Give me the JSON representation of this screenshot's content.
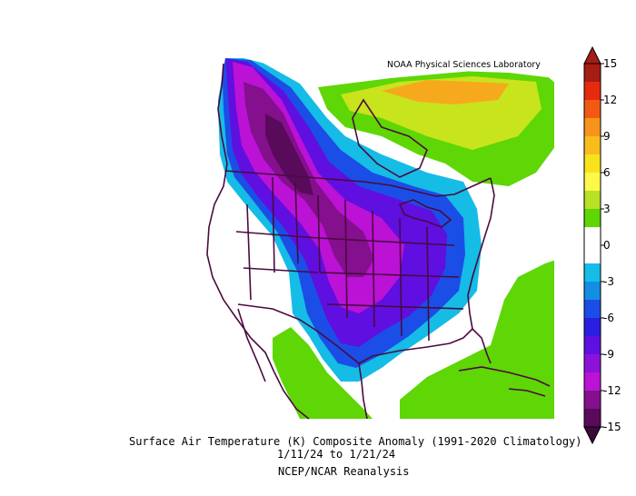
{
  "map": {
    "credit": "NOAA Physical Sciences Laboratory",
    "caption_title": "Surface Air Temperature (K) Composite Anomaly (1991-2020 Climatology)",
    "caption_dates": "1/11/24   to 1/21/24",
    "caption_source": "NCEP/NCAR Reanalysis"
  },
  "colorbar": {
    "ticks": [
      "15",
      "12",
      "9",
      "6",
      "3",
      "0",
      "-3",
      "-6",
      "-9",
      "-12",
      "-15"
    ],
    "segments": [
      "#a51d15",
      "#e62a0d",
      "#f25a14",
      "#f7941d",
      "#f7bd1d",
      "#f9e21c",
      "#fcf94b",
      "#b8e024",
      "#5fd606",
      "#ffffff",
      "#ffffff",
      "#15bce6",
      "#148ee2",
      "#1b4ee6",
      "#2a1ee0",
      "#5f0fe0",
      "#8c12d9",
      "#bb12d5",
      "#84108d",
      "#5a0a5a"
    ]
  },
  "colors": {
    "warm_green": "#5fd606",
    "warm_yellow": "#c8e41c",
    "warm_orange": "#f7a91d",
    "cold_cyan": "#15bce6",
    "cold_blue": "#1b4ee6",
    "cold_violet": "#5f0fe0",
    "cold_purple": "#bb12d5",
    "cold_deep": "#5a0a5a",
    "boundary": "#4a0a40"
  }
}
